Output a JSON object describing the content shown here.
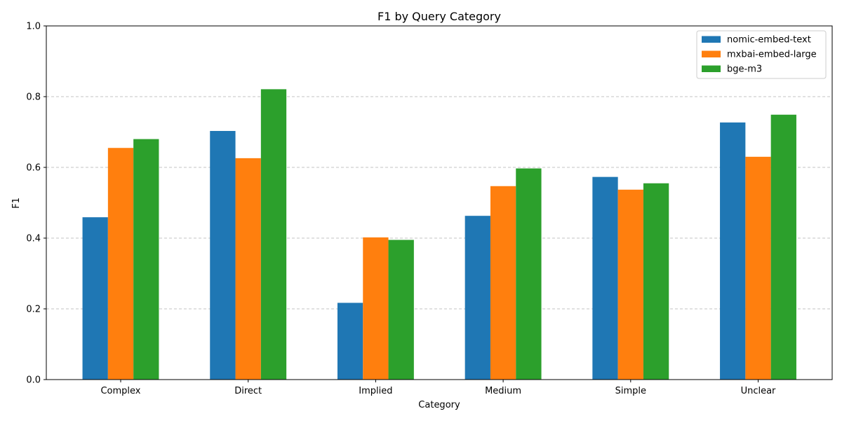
{
  "chart_data": {
    "type": "bar",
    "title": "F1 by Query Category",
    "xlabel": "Category",
    "ylabel": "F1",
    "ylim": [
      0,
      1.0
    ],
    "yticks": [
      "0.0",
      "0.2",
      "0.4",
      "0.6",
      "0.8",
      "1.0"
    ],
    "ytick_values": [
      0,
      0.2,
      0.4,
      0.6,
      0.8,
      1.0
    ],
    "grid": "y-dashed",
    "legend_position": "top-right",
    "categories": [
      "Complex",
      "Direct",
      "Implied",
      "Medium",
      "Simple",
      "Unclear"
    ],
    "series": [
      {
        "name": "nomic-embed-text",
        "color": "#1f77b4",
        "values": [
          0.459,
          0.703,
          0.217,
          0.463,
          0.573,
          0.727
        ]
      },
      {
        "name": "mxbai-embed-large",
        "color": "#ff7f0e",
        "values": [
          0.655,
          0.626,
          0.402,
          0.547,
          0.537,
          0.63
        ]
      },
      {
        "name": "bge-m3",
        "color": "#2ca02c",
        "values": [
          0.68,
          0.821,
          0.395,
          0.597,
          0.555,
          0.749
        ]
      }
    ]
  }
}
